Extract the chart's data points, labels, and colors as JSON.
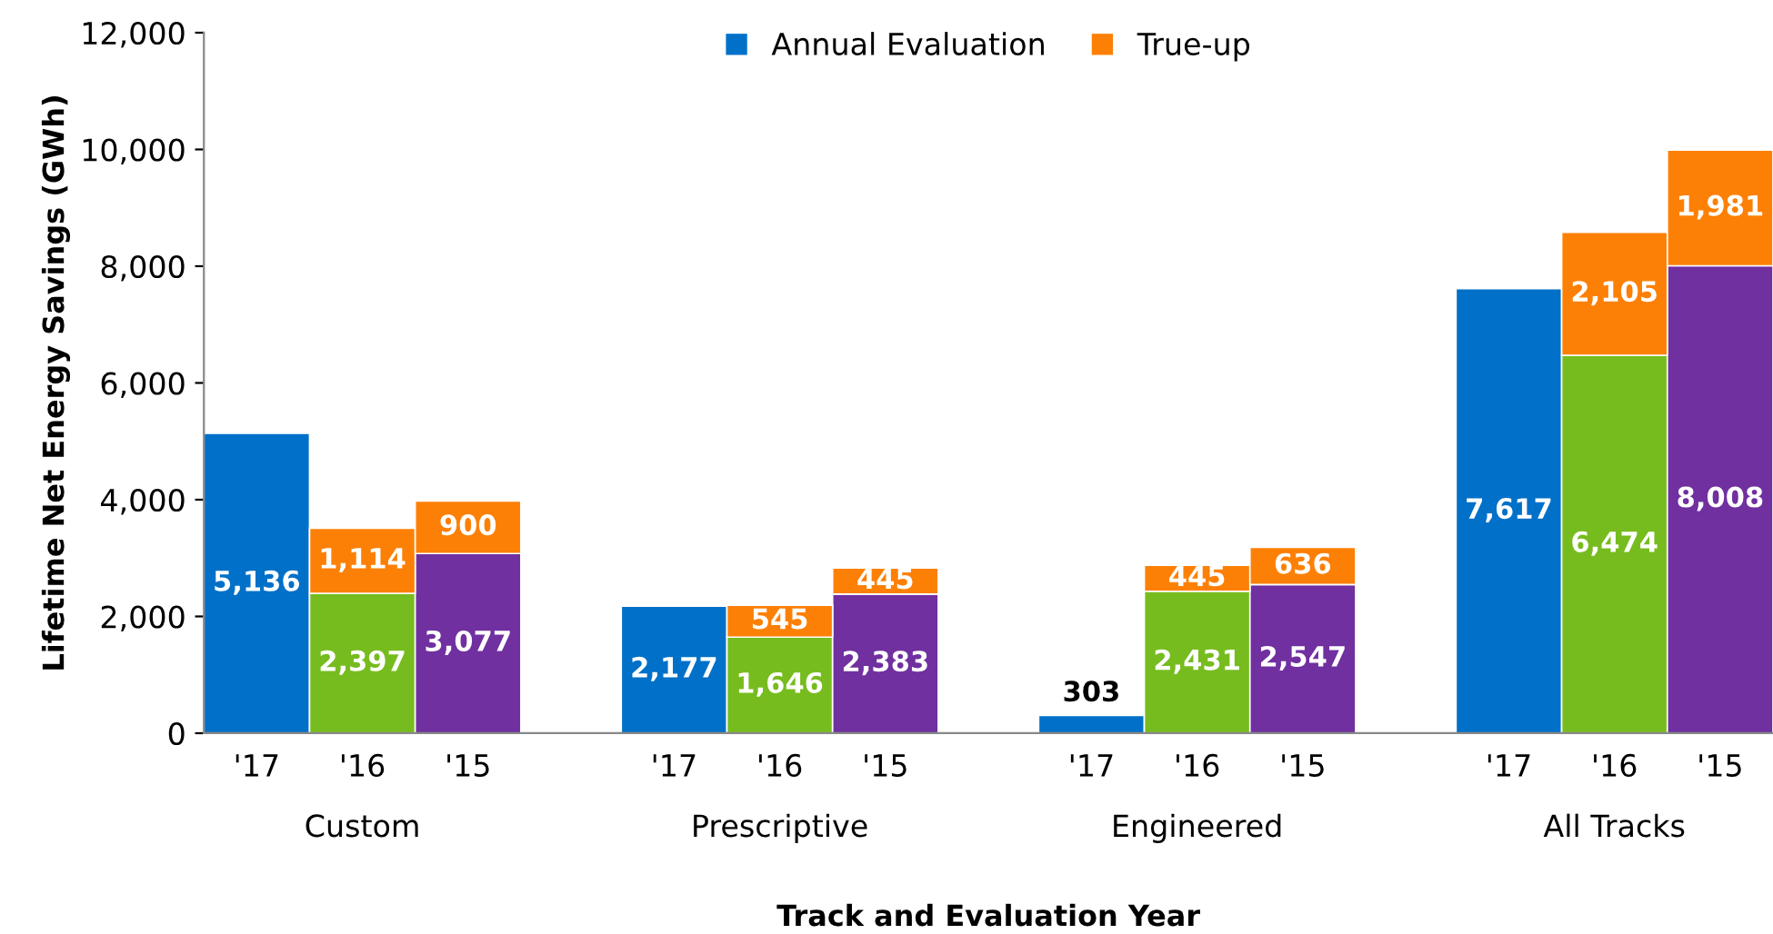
{
  "chart_data": {
    "type": "bar",
    "stacked": true,
    "xlabel": "Track and Evaluation Year",
    "ylabel": "Lifetime Net Energy Savings (GWh)",
    "categories": [
      "'17",
      "'16",
      "'15",
      "'17",
      "'16",
      "'15",
      "'17",
      "'16",
      "'15",
      "'17",
      "'16",
      "'15"
    ],
    "annotations": [
      "Custom",
      "Prescriptive",
      "Engineered",
      "All Tracks"
    ],
    "series": [
      {
        "name": "Annual Evaluation",
        "color": "#0070c8",
        "colors": [
          "#0070c8",
          "#77bc1f",
          "#7030a0",
          "#0070c8",
          "#77bc1f",
          "#7030a0",
          "#0070c8",
          "#77bc1f",
          "#7030a0",
          "#0070c8",
          "#77bc1f",
          "#7030a0"
        ],
        "values": [
          5136,
          2397,
          3077,
          2177,
          1646,
          2383,
          303,
          2431,
          2547,
          7617,
          6474,
          8008
        ],
        "value_labels": [
          "5,136",
          "2,397",
          "3,077",
          "2,177",
          "1,646",
          "2,383",
          "303",
          "2,431",
          "2,547",
          "7,617",
          "6,474",
          "8,008"
        ]
      },
      {
        "name": "True-up",
        "color": "#fd8006",
        "values": [
          null,
          1114,
          900,
          null,
          545,
          445,
          null,
          445,
          636,
          null,
          2105,
          1981
        ],
        "value_labels": [
          null,
          "1,114",
          "900",
          null,
          "545",
          "445",
          null,
          "445",
          "636",
          null,
          "2,105",
          "1,981"
        ]
      }
    ],
    "ylim": [
      0,
      12000
    ],
    "yticks": [
      0,
      {
        "value": 2000,
        "label": "2,000"
      },
      {
        "value": 4000,
        "label": "4,000"
      },
      {
        "value": 6000,
        "label": "6,000"
      },
      {
        "value": 8000,
        "label": "8,000"
      },
      {
        "value": 10000,
        "label": "10,000"
      },
      {
        "value": 12000,
        "label": "12,000"
      }
    ],
    "grid": false,
    "legend": "top"
  }
}
